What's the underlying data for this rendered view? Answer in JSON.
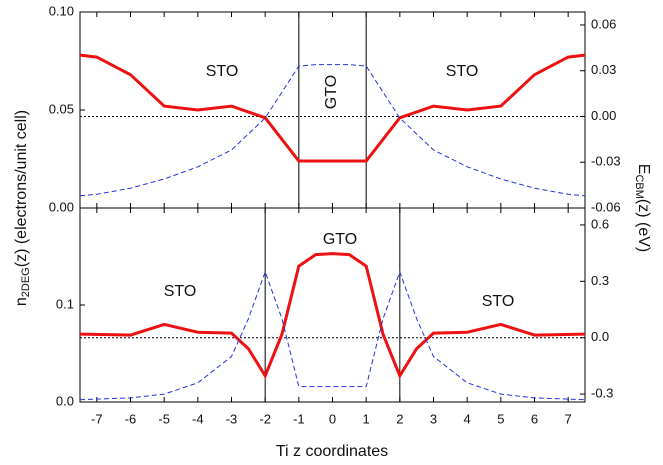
{
  "chart_data": [
    {
      "type": "line",
      "y_label": {
        "main": "n",
        "sub": "2DEG",
        "rest": "(z) (electrons/unit cell)"
      },
      "y2_label": {
        "main": "E",
        "sub": "CBM",
        "rest": "(z) (eV)"
      },
      "annotations": [
        "STO",
        "GTO",
        "STO"
      ],
      "xlim": [
        -7.5,
        7.5
      ],
      "ylim": [
        0,
        0.1
      ],
      "yticks": [
        {
          "value": 0,
          "label": "0.00"
        },
        {
          "value": 0.05,
          "label": "0.05"
        },
        {
          "value": 0.1,
          "label": "0.10"
        }
      ],
      "y2lim": [
        -0.06,
        0.0685
      ],
      "y2ticks": [
        {
          "value": 0.06,
          "label": "0.06"
        },
        {
          "value": 0.03,
          "label": "0.03"
        },
        {
          "value": 0,
          "label": "0.00"
        },
        {
          "value": -0.03,
          "label": "-0.03"
        },
        {
          "value": -0.06,
          "label": "-0.06"
        }
      ],
      "vlines": [
        -1,
        1
      ],
      "hline_y2": 0,
      "x": [
        -7.5,
        -7,
        -6,
        -5,
        -4,
        -3,
        -2,
        -1,
        -0.5,
        0.5,
        1,
        2,
        3,
        4,
        5,
        6,
        7,
        7.5
      ],
      "series": [
        {
          "color": "#ee1111",
          "values": [
            0.078,
            0.077,
            0.068,
            0.052,
            0.05,
            0.052,
            0.046,
            0.024,
            0.024,
            0.024,
            0.024,
            0.046,
            0.052,
            0.05,
            0.052,
            0.068,
            0.077,
            0.078
          ]
        },
        {
          "color": "#2233dd",
          "axis": "y2",
          "dashed": true,
          "values": [
            -0.052,
            -0.051,
            -0.047,
            -0.041,
            -0.033,
            -0.022,
            -0.001,
            0.033,
            0.034,
            0.034,
            0.033,
            -0.001,
            -0.022,
            -0.033,
            -0.041,
            -0.047,
            -0.051,
            -0.052
          ]
        }
      ]
    },
    {
      "type": "line",
      "x_label": "Ti z coordinates",
      "annotations": [
        "STO",
        "GTO",
        "STO"
      ],
      "xlim": [
        -7.5,
        7.5
      ],
      "xticks": [
        -7,
        -6,
        -5,
        -4,
        -3,
        -2,
        -1,
        0,
        1,
        2,
        3,
        4,
        5,
        6,
        7
      ],
      "ylim": [
        0,
        0.2
      ],
      "yticks": [
        {
          "value": 0,
          "label": "0.0"
        },
        {
          "value": 0.1,
          "label": "0.1"
        }
      ],
      "y2lim": [
        -0.342,
        0.69
      ],
      "y2ticks": [
        0.6,
        0.3,
        {
          "value": 0,
          "label": "0.0"
        },
        -0.3
      ],
      "vlines": [
        -2,
        2
      ],
      "hline_y2": 0,
      "x": [
        -7.5,
        -6,
        -5,
        -4,
        -3,
        -2.5,
        -2,
        -1.5,
        -1,
        -0.5,
        0,
        0.5,
        1,
        1.5,
        2,
        2.5,
        3,
        4,
        5,
        6,
        7.5
      ],
      "series": [
        {
          "color": "#ee1111",
          "values": [
            0.07,
            0.069,
            0.08,
            0.072,
            0.071,
            0.055,
            0.027,
            0.07,
            0.14,
            0.152,
            0.153,
            0.152,
            0.14,
            0.07,
            0.027,
            0.055,
            0.071,
            0.072,
            0.08,
            0.069,
            0.07
          ]
        },
        {
          "color": "#2233dd",
          "axis": "y2",
          "dashed": true,
          "values": [
            -0.33,
            -0.32,
            -0.3,
            -0.24,
            -0.1,
            0.1,
            0.35,
            0.1,
            -0.26,
            -0.26,
            -0.26,
            -0.26,
            -0.26,
            0.1,
            0.35,
            0.1,
            -0.1,
            -0.24,
            -0.3,
            -0.32,
            -0.33
          ]
        }
      ]
    }
  ]
}
